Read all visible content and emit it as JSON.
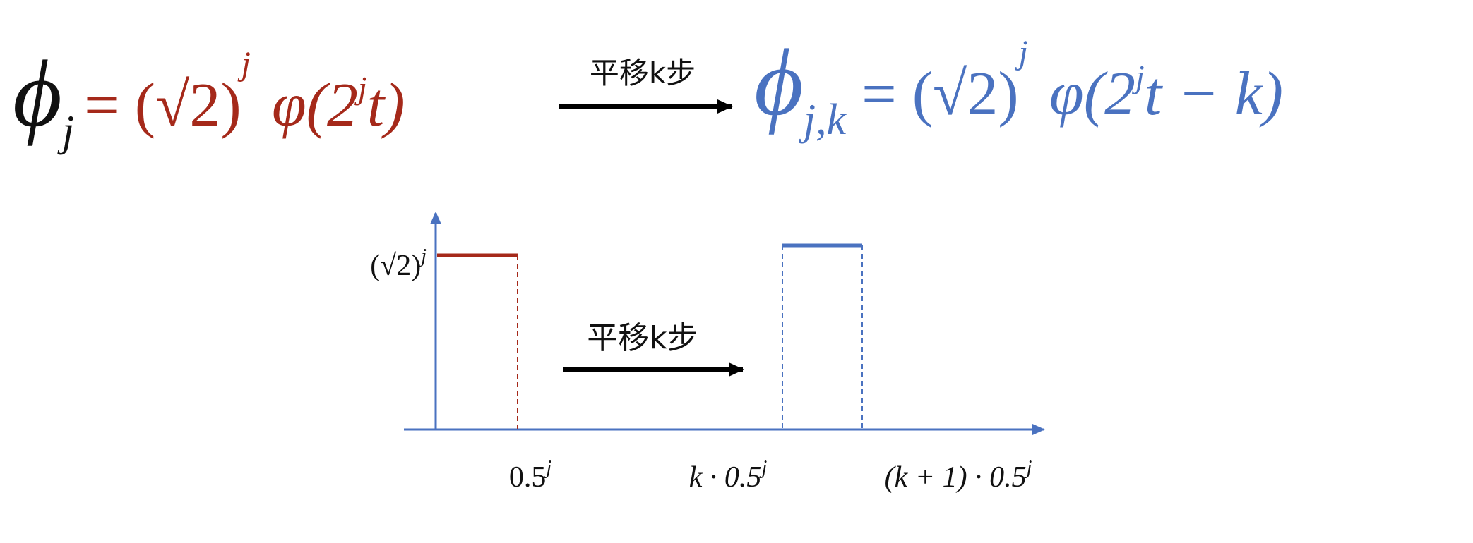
{
  "top": {
    "left_formula": {
      "symbol": "ϕ",
      "sub": "j",
      "eq": "= (√2)",
      "sup": "j",
      "func": "φ(2",
      "func_sup": "j",
      "func_end": "t)"
    },
    "arrow_label": "平移k步",
    "right_formula": {
      "symbol": "ϕ",
      "sub": "j,k",
      "eq": "= (√2)",
      "sup": "j",
      "func": "φ(2",
      "func_sup": "j",
      "func_end": "t − k)"
    }
  },
  "diagram": {
    "y_label": {
      "base": "(√2)",
      "sup": "j"
    },
    "arrow_label": "平移k步",
    "x_labels": [
      {
        "base": "0.5",
        "sup": "j"
      },
      {
        "base": "k · 0.5",
        "sup": "j"
      },
      {
        "base": "(k + 1) · 0.5",
        "sup": "j"
      }
    ]
  }
}
